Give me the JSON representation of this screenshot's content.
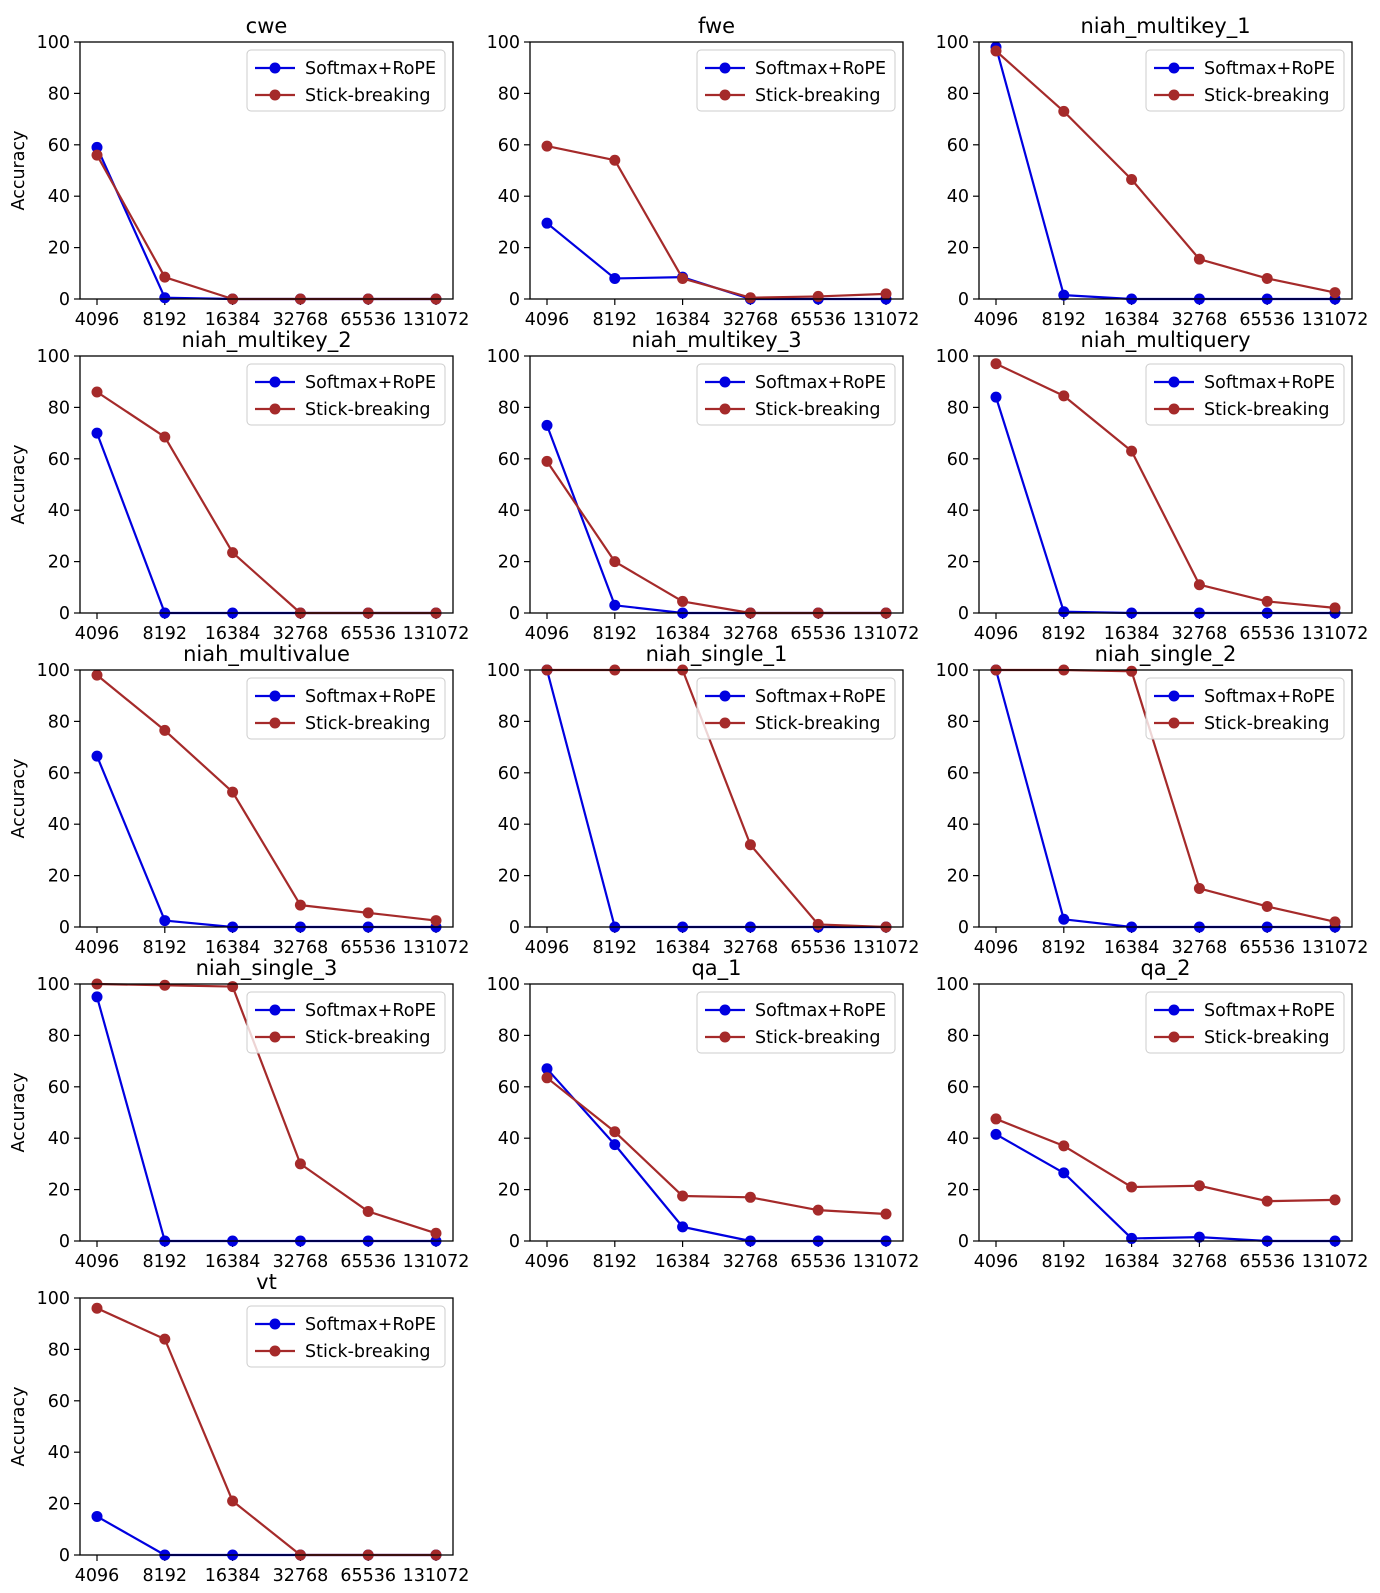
{
  "figure": {
    "rows": 5,
    "cols": 3
  },
  "chart_data": [
    {
      "type": "line",
      "title": "cwe",
      "ylabel": "Accuracy",
      "ylim": [
        0,
        100
      ],
      "yticks": [
        0,
        20,
        40,
        60,
        80,
        100
      ],
      "x": [
        4096,
        8192,
        16384,
        32768,
        65536,
        131072
      ],
      "legend": "top-right",
      "series": [
        {
          "name": "Softmax+RoPE",
          "color": "#0000e0",
          "values": [
            59,
            0.5,
            0,
            0,
            0,
            0
          ]
        },
        {
          "name": "Stick-breaking",
          "color": "#a52a2a",
          "values": [
            56,
            8.5,
            0,
            0,
            0,
            0
          ]
        }
      ]
    },
    {
      "type": "line",
      "title": "fwe",
      "ylabel": "",
      "ylim": [
        0,
        100
      ],
      "yticks": [
        0,
        20,
        40,
        60,
        80,
        100
      ],
      "x": [
        4096,
        8192,
        16384,
        32768,
        65536,
        131072
      ],
      "legend": "top-right",
      "series": [
        {
          "name": "Softmax+RoPE",
          "color": "#0000e0",
          "values": [
            29.5,
            8,
            8.5,
            0,
            0,
            0
          ]
        },
        {
          "name": "Stick-breaking",
          "color": "#a52a2a",
          "values": [
            59.5,
            54,
            8,
            0.5,
            1,
            2
          ]
        }
      ]
    },
    {
      "type": "line",
      "title": "niah_multikey_1",
      "ylabel": "",
      "ylim": [
        0,
        100
      ],
      "yticks": [
        0,
        20,
        40,
        60,
        80,
        100
      ],
      "x": [
        4096,
        8192,
        16384,
        32768,
        65536,
        131072
      ],
      "legend": "top-right",
      "series": [
        {
          "name": "Softmax+RoPE",
          "color": "#0000e0",
          "values": [
            98,
            1.5,
            0,
            0,
            0,
            0
          ]
        },
        {
          "name": "Stick-breaking",
          "color": "#a52a2a",
          "values": [
            96.5,
            73,
            46.5,
            15.5,
            8,
            2.5
          ]
        }
      ]
    },
    {
      "type": "line",
      "title": "niah_multikey_2",
      "ylabel": "Accuracy",
      "ylim": [
        0,
        100
      ],
      "yticks": [
        0,
        20,
        40,
        60,
        80,
        100
      ],
      "x": [
        4096,
        8192,
        16384,
        32768,
        65536,
        131072
      ],
      "legend": "top-right",
      "series": [
        {
          "name": "Softmax+RoPE",
          "color": "#0000e0",
          "values": [
            70,
            0,
            0,
            0,
            0,
            0
          ]
        },
        {
          "name": "Stick-breaking",
          "color": "#a52a2a",
          "values": [
            86,
            68.5,
            23.5,
            0,
            0,
            0
          ]
        }
      ]
    },
    {
      "type": "line",
      "title": "niah_multikey_3",
      "ylabel": "",
      "ylim": [
        0,
        100
      ],
      "yticks": [
        0,
        20,
        40,
        60,
        80,
        100
      ],
      "x": [
        4096,
        8192,
        16384,
        32768,
        65536,
        131072
      ],
      "legend": "top-right",
      "series": [
        {
          "name": "Softmax+RoPE",
          "color": "#0000e0",
          "values": [
            73,
            3,
            0,
            0,
            0,
            0
          ]
        },
        {
          "name": "Stick-breaking",
          "color": "#a52a2a",
          "values": [
            59,
            20,
            4.5,
            0,
            0,
            0
          ]
        }
      ]
    },
    {
      "type": "line",
      "title": "niah_multiquery",
      "ylabel": "",
      "ylim": [
        0,
        100
      ],
      "yticks": [
        0,
        20,
        40,
        60,
        80,
        100
      ],
      "x": [
        4096,
        8192,
        16384,
        32768,
        65536,
        131072
      ],
      "legend": "top-right",
      "series": [
        {
          "name": "Softmax+RoPE",
          "color": "#0000e0",
          "values": [
            84,
            0.5,
            0,
            0,
            0,
            0
          ]
        },
        {
          "name": "Stick-breaking",
          "color": "#a52a2a",
          "values": [
            97,
            84.5,
            63,
            11,
            4.5,
            2
          ]
        }
      ]
    },
    {
      "type": "line",
      "title": "niah_multivalue",
      "ylabel": "Accuracy",
      "ylim": [
        0,
        100
      ],
      "yticks": [
        0,
        20,
        40,
        60,
        80,
        100
      ],
      "x": [
        4096,
        8192,
        16384,
        32768,
        65536,
        131072
      ],
      "legend": "top-right",
      "series": [
        {
          "name": "Softmax+RoPE",
          "color": "#0000e0",
          "values": [
            66.5,
            2.5,
            0,
            0,
            0,
            0
          ]
        },
        {
          "name": "Stick-breaking",
          "color": "#a52a2a",
          "values": [
            98,
            76.5,
            52.5,
            8.5,
            5.5,
            2.5
          ]
        }
      ]
    },
    {
      "type": "line",
      "title": "niah_single_1",
      "ylabel": "",
      "ylim": [
        0,
        100
      ],
      "yticks": [
        0,
        20,
        40,
        60,
        80,
        100
      ],
      "x": [
        4096,
        8192,
        16384,
        32768,
        65536,
        131072
      ],
      "legend": "top-right",
      "series": [
        {
          "name": "Softmax+RoPE",
          "color": "#0000e0",
          "values": [
            100,
            0,
            0,
            0,
            0,
            0
          ]
        },
        {
          "name": "Stick-breaking",
          "color": "#a52a2a",
          "values": [
            100,
            100,
            100,
            32,
            1,
            0
          ]
        }
      ]
    },
    {
      "type": "line",
      "title": "niah_single_2",
      "ylabel": "",
      "ylim": [
        0,
        100
      ],
      "yticks": [
        0,
        20,
        40,
        60,
        80,
        100
      ],
      "x": [
        4096,
        8192,
        16384,
        32768,
        65536,
        131072
      ],
      "legend": "top-right",
      "series": [
        {
          "name": "Softmax+RoPE",
          "color": "#0000e0",
          "values": [
            100,
            3,
            0,
            0,
            0,
            0
          ]
        },
        {
          "name": "Stick-breaking",
          "color": "#a52a2a",
          "values": [
            100,
            100,
            99.5,
            15,
            8,
            2
          ]
        }
      ]
    },
    {
      "type": "line",
      "title": "niah_single_3",
      "ylabel": "Accuracy",
      "ylim": [
        0,
        100
      ],
      "yticks": [
        0,
        20,
        40,
        60,
        80,
        100
      ],
      "x": [
        4096,
        8192,
        16384,
        32768,
        65536,
        131072
      ],
      "legend": "top-right",
      "series": [
        {
          "name": "Softmax+RoPE",
          "color": "#0000e0",
          "values": [
            95,
            0,
            0,
            0,
            0,
            0
          ]
        },
        {
          "name": "Stick-breaking",
          "color": "#a52a2a",
          "values": [
            100,
            99.5,
            99,
            30,
            11.5,
            3
          ]
        }
      ]
    },
    {
      "type": "line",
      "title": "qa_1",
      "ylabel": "",
      "ylim": [
        0,
        100
      ],
      "yticks": [
        0,
        20,
        40,
        60,
        80,
        100
      ],
      "x": [
        4096,
        8192,
        16384,
        32768,
        65536,
        131072
      ],
      "legend": "top-right",
      "series": [
        {
          "name": "Softmax+RoPE",
          "color": "#0000e0",
          "values": [
            67,
            37.5,
            5.5,
            0,
            0,
            0
          ]
        },
        {
          "name": "Stick-breaking",
          "color": "#a52a2a",
          "values": [
            63.5,
            42.5,
            17.5,
            17,
            12,
            10.5
          ]
        }
      ]
    },
    {
      "type": "line",
      "title": "qa_2",
      "ylabel": "",
      "ylim": [
        0,
        100
      ],
      "yticks": [
        0,
        20,
        40,
        60,
        80,
        100
      ],
      "x": [
        4096,
        8192,
        16384,
        32768,
        65536,
        131072
      ],
      "legend": "top-right",
      "series": [
        {
          "name": "Softmax+RoPE",
          "color": "#0000e0",
          "values": [
            41.5,
            26.5,
            1,
            1.5,
            0,
            0
          ]
        },
        {
          "name": "Stick-breaking",
          "color": "#a52a2a",
          "values": [
            47.5,
            37,
            21,
            21.5,
            15.5,
            16
          ]
        }
      ]
    },
    {
      "type": "line",
      "title": "vt",
      "ylabel": "Accuracy",
      "ylim": [
        0,
        100
      ],
      "yticks": [
        0,
        20,
        40,
        60,
        80,
        100
      ],
      "x": [
        4096,
        8192,
        16384,
        32768,
        65536,
        131072
      ],
      "legend": "top-right",
      "series": [
        {
          "name": "Softmax+RoPE",
          "color": "#0000e0",
          "values": [
            15,
            0,
            0,
            0,
            0,
            0
          ]
        },
        {
          "name": "Stick-breaking",
          "color": "#a52a2a",
          "values": [
            96,
            84,
            21,
            0,
            0,
            0
          ]
        }
      ]
    }
  ]
}
